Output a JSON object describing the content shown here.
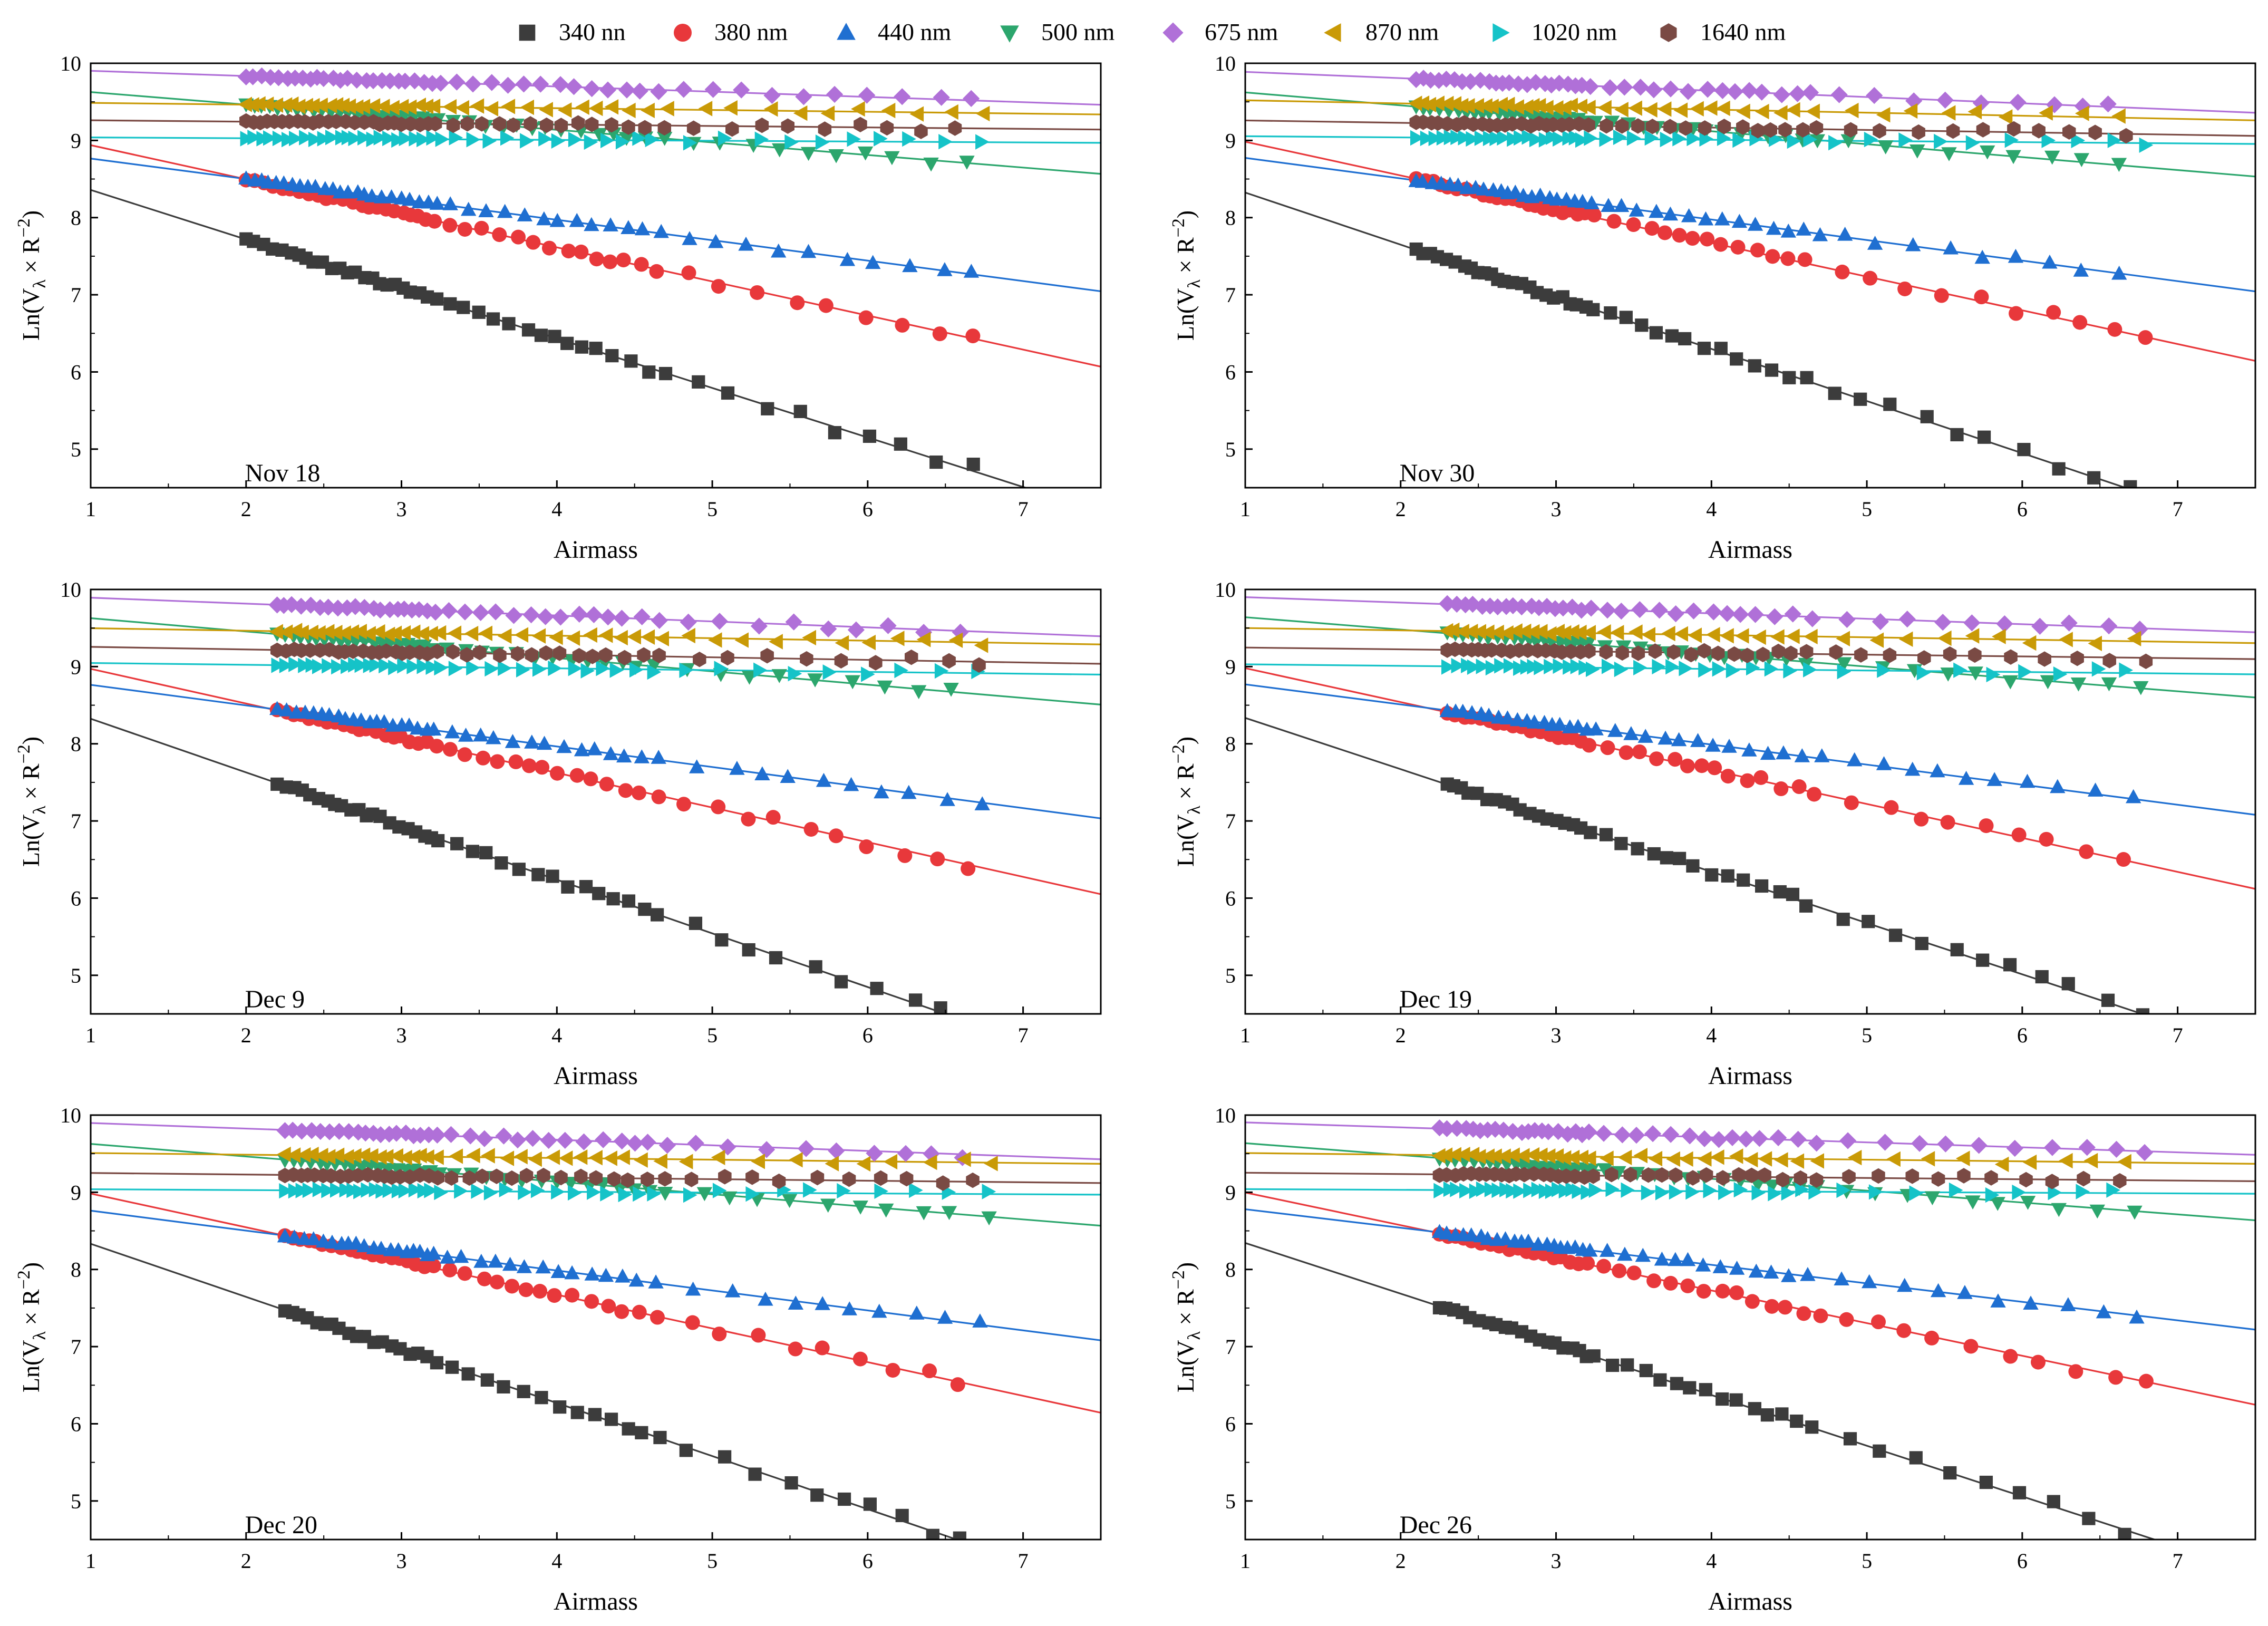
{
  "legend": [
    {
      "label": "340 nn",
      "color": "#3c3c3c",
      "marker": "square"
    },
    {
      "label": "380 nm",
      "color": "#e8383b",
      "marker": "circle"
    },
    {
      "label": "440 nm",
      "color": "#1f6fd1",
      "marker": "triangle-up"
    },
    {
      "label": "500 nm",
      "color": "#2ca66d",
      "marker": "triangle-down"
    },
    {
      "label": "675 nm",
      "color": "#b070d8",
      "marker": "diamond"
    },
    {
      "label": "870 nm",
      "color": "#c99a06",
      "marker": "triangle-left"
    },
    {
      "label": "1020 nm",
      "color": "#15c3c8",
      "marker": "triangle-right"
    },
    {
      "label": "1640 nm",
      "color": "#7a4a44",
      "marker": "hexagon"
    }
  ],
  "chart_data": [
    {
      "type": "scatter",
      "annotation": "Nov 18",
      "xlabel": "Airmass",
      "ylabel": "Ln(V_λ × R^-2)",
      "xlim": [
        1,
        7.5
      ],
      "ylim": [
        4.5,
        10
      ],
      "xticks": [
        "1",
        "2",
        "3",
        "4",
        "5",
        "6",
        "7"
      ],
      "yticks": [
        "5",
        "6",
        "7",
        "8",
        "9",
        "10"
      ],
      "x_range": [
        2.0,
        6.8
      ],
      "series": [
        {
          "name": "340 nn",
          "intercept": 9.0,
          "slope": -0.6415
        },
        {
          "name": "380 nm",
          "intercept": 9.38,
          "slope": -0.4415
        },
        {
          "name": "440 nm",
          "intercept": 9.03,
          "slope": -0.2646
        },
        {
          "name": "500 nm",
          "intercept": 9.79,
          "slope": -0.1631
        },
        {
          "name": "675 nm",
          "intercept": 9.97,
          "slope": -0.0677
        },
        {
          "name": "870 nm",
          "intercept": 9.51,
          "slope": -0.0231
        },
        {
          "name": "1020 nm",
          "intercept": 9.05,
          "slope": -0.0108
        },
        {
          "name": "1640 nm",
          "intercept": 9.28,
          "slope": -0.0185
        }
      ]
    },
    {
      "type": "scatter",
      "annotation": "Nov 30",
      "xlabel": "Airmass",
      "ylabel": "Ln(V_λ × R^-2)",
      "xlim": [
        1,
        7.5
      ],
      "ylim": [
        4.5,
        10
      ],
      "xticks": [
        "1",
        "2",
        "3",
        "4",
        "5",
        "6",
        "7"
      ],
      "yticks": [
        "5",
        "6",
        "7",
        "8",
        "9",
        "10"
      ],
      "x_range": [
        2.1,
        6.8
      ],
      "series": [
        {
          "name": "340 nn",
          "intercept": 9.0,
          "slope": -0.6754
        },
        {
          "name": "380 nm",
          "intercept": 9.42,
          "slope": -0.4369
        },
        {
          "name": "440 nm",
          "intercept": 9.04,
          "slope": -0.2662
        },
        {
          "name": "500 nm",
          "intercept": 9.79,
          "slope": -0.1677
        },
        {
          "name": "675 nm",
          "intercept": 9.97,
          "slope": -0.0815
        },
        {
          "name": "870 nm",
          "intercept": 9.56,
          "slope": -0.04
        },
        {
          "name": "1020 nm",
          "intercept": 9.07,
          "slope": -0.0154
        },
        {
          "name": "1640 nm",
          "intercept": 9.29,
          "slope": -0.0308
        }
      ]
    },
    {
      "type": "scatter",
      "annotation": "Dec 9",
      "xlabel": "Airmass",
      "ylabel": "Ln(V_λ × R^-2)",
      "xlim": [
        1,
        7.5
      ],
      "ylim": [
        4.5,
        10
      ],
      "xticks": [
        "1",
        "2",
        "3",
        "4",
        "5",
        "6",
        "7"
      ],
      "yticks": [
        "5",
        "6",
        "7",
        "8",
        "9",
        "10"
      ],
      "x_range": [
        2.2,
        6.75
      ],
      "series": [
        {
          "name": "340 nn",
          "intercept": 9.02,
          "slope": -0.6954
        },
        {
          "name": "380 nm",
          "intercept": 9.42,
          "slope": -0.4492
        },
        {
          "name": "440 nm",
          "intercept": 9.03,
          "slope": -0.2662
        },
        {
          "name": "500 nm",
          "intercept": 9.8,
          "slope": -0.1723
        },
        {
          "name": "675 nm",
          "intercept": 9.97,
          "slope": -0.0769
        },
        {
          "name": "870 nm",
          "intercept": 9.53,
          "slope": -0.0323
        },
        {
          "name": "1020 nm",
          "intercept": 9.07,
          "slope": -0.0231
        },
        {
          "name": "1640 nm",
          "intercept": 9.29,
          "slope": -0.0338
        }
      ]
    },
    {
      "type": "scatter",
      "annotation": "Dec 19",
      "xlabel": "Airmass",
      "ylabel": "Ln(V_λ × R^-2)",
      "xlim": [
        1,
        7.5
      ],
      "ylim": [
        4.5,
        10
      ],
      "xticks": [
        "1",
        "2",
        "3",
        "4",
        "5",
        "6",
        "7"
      ],
      "yticks": [
        "5",
        "6",
        "7",
        "8",
        "9",
        "10"
      ],
      "x_range": [
        2.3,
        6.8
      ],
      "series": [
        {
          "name": "340 nn",
          "intercept": 9.0,
          "slope": -0.6646
        },
        {
          "name": "380 nm",
          "intercept": 9.42,
          "slope": -0.44
        },
        {
          "name": "440 nm",
          "intercept": 9.03,
          "slope": -0.26
        },
        {
          "name": "500 nm",
          "intercept": 9.8,
          "slope": -0.16
        },
        {
          "name": "675 nm",
          "intercept": 9.97,
          "slope": -0.07
        },
        {
          "name": "870 nm",
          "intercept": 9.53,
          "slope": -0.03
        },
        {
          "name": "1020 nm",
          "intercept": 9.05,
          "slope": -0.02
        },
        {
          "name": "1640 nm",
          "intercept": 9.27,
          "slope": -0.023
        }
      ]
    },
    {
      "type": "scatter",
      "annotation": "Dec 20",
      "xlabel": "Airmass",
      "ylabel": "Ln(V_λ × R^-2)",
      "xlim": [
        1,
        7.5
      ],
      "ylim": [
        4.5,
        10
      ],
      "xticks": [
        "1",
        "2",
        "3",
        "4",
        "5",
        "6",
        "7"
      ],
      "yticks": [
        "5",
        "6",
        "7",
        "8",
        "9",
        "10"
      ],
      "x_range": [
        2.25,
        6.8
      ],
      "series": [
        {
          "name": "340 nn",
          "intercept": 9.02,
          "slope": -0.6877
        },
        {
          "name": "380 nm",
          "intercept": 9.42,
          "slope": -0.4369
        },
        {
          "name": "440 nm",
          "intercept": 9.02,
          "slope": -0.2585
        },
        {
          "name": "500 nm",
          "intercept": 9.79,
          "slope": -0.1631
        },
        {
          "name": "675 nm",
          "intercept": 9.97,
          "slope": -0.0723
        },
        {
          "name": "870 nm",
          "intercept": 9.53,
          "slope": -0.0215
        },
        {
          "name": "1020 nm",
          "intercept": 9.05,
          "slope": -0.0108
        },
        {
          "name": "1640 nm",
          "intercept": 9.27,
          "slope": -0.02
        }
      ]
    },
    {
      "type": "scatter",
      "annotation": "Dec 26",
      "xlabel": "Airmass",
      "ylabel": "Ln(V_λ × R^-2)",
      "xlim": [
        1,
        7.5
      ],
      "ylim": [
        4.5,
        10
      ],
      "xticks": [
        "1",
        "2",
        "3",
        "4",
        "5",
        "6",
        "7"
      ],
      "yticks": [
        "5",
        "6",
        "7",
        "8",
        "9",
        "10"
      ],
      "x_range": [
        2.25,
        6.8
      ],
      "series": [
        {
          "name": "340 nn",
          "intercept": 9.0,
          "slope": -0.6569
        },
        {
          "name": "380 nm",
          "intercept": 9.42,
          "slope": -0.4231
        },
        {
          "name": "440 nm",
          "intercept": 9.02,
          "slope": -0.24
        },
        {
          "name": "500 nm",
          "intercept": 9.79,
          "slope": -0.1538
        },
        {
          "name": "675 nm",
          "intercept": 9.97,
          "slope": -0.0646
        },
        {
          "name": "870 nm",
          "intercept": 9.53,
          "slope": -0.0215
        },
        {
          "name": "1020 nm",
          "intercept": 9.05,
          "slope": -0.0092
        },
        {
          "name": "1640 nm",
          "intercept": 9.27,
          "slope": -0.0169
        }
      ]
    }
  ]
}
